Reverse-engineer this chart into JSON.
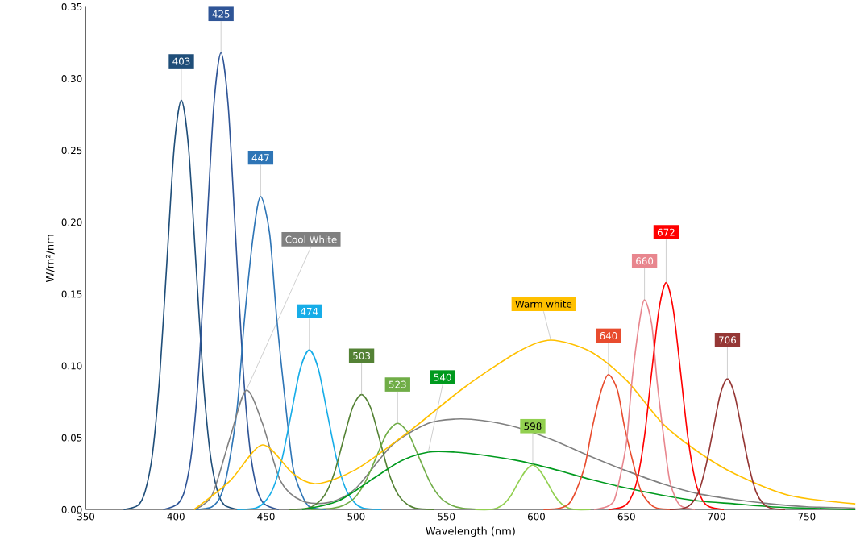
{
  "chart_data": {
    "type": "line",
    "xlabel": "Wavelength (nm)",
    "ylabel": "W/m²/nm",
    "xlim": [
      350,
      777
    ],
    "ylim": [
      0,
      0.35
    ],
    "xticks": [
      350,
      400,
      450,
      500,
      550,
      600,
      650,
      700,
      750
    ],
    "yticks": [
      {
        "value": 0,
        "label": "0.00"
      },
      {
        "value": 0.05,
        "label": "0.05"
      },
      {
        "value": 0.1,
        "label": "0.10"
      },
      {
        "value": 0.15,
        "label": "0.15"
      },
      {
        "value": 0.2,
        "label": "0.20"
      },
      {
        "value": 0.25,
        "label": "0.25"
      },
      {
        "value": 0.3,
        "label": "0.30"
      },
      {
        "value": 0.35,
        "label": "0.35"
      }
    ],
    "grid": false,
    "legend": false,
    "marker": "none",
    "line_style": "solid",
    "series": [
      {
        "name": "403",
        "color": "#1f4e79",
        "x": [
          371,
          379,
          383,
          387,
          391,
          395,
          399,
          403,
          407,
          411,
          415,
          419,
          423,
          427,
          435
        ],
        "values": [
          0,
          0.003,
          0.013,
          0.039,
          0.093,
          0.173,
          0.252,
          0.285,
          0.252,
          0.173,
          0.093,
          0.039,
          0.013,
          0.003,
          0
        ]
      },
      {
        "name": "425",
        "color": "#2f5597",
        "x": [
          393,
          401,
          405,
          409,
          413,
          417,
          421,
          425,
          429,
          433,
          437,
          441,
          445,
          449,
          457
        ],
        "values": [
          0,
          0.004,
          0.014,
          0.043,
          0.103,
          0.193,
          0.281,
          0.318,
          0.281,
          0.193,
          0.103,
          0.043,
          0.014,
          0.004,
          0
        ]
      },
      {
        "name": "447",
        "color": "#2e75b6",
        "x": [
          411,
          420,
          425,
          429,
          434,
          438,
          443,
          447,
          452,
          456,
          461,
          465,
          470,
          474,
          483
        ],
        "values": [
          0,
          0.002,
          0.01,
          0.029,
          0.071,
          0.132,
          0.192,
          0.218,
          0.192,
          0.132,
          0.071,
          0.029,
          0.01,
          0.002,
          0
        ]
      },
      {
        "name": "Cool White",
        "color": "#808080",
        "x": [
          410,
          420,
          430,
          439,
          448,
          458,
          470,
          485,
          500,
          520,
          540,
          555,
          570,
          590,
          610,
          630,
          650,
          670,
          690,
          710,
          730,
          750,
          777
        ],
        "values": [
          0,
          0.01,
          0.05,
          0.083,
          0.06,
          0.02,
          0.006,
          0.005,
          0.015,
          0.045,
          0.06,
          0.063,
          0.062,
          0.057,
          0.048,
          0.037,
          0.027,
          0.018,
          0.011,
          0.007,
          0.004,
          0.002,
          0.001
        ]
      },
      {
        "name": "474",
        "color": "#17ade8",
        "x": [
          434,
          444,
          449,
          454,
          459,
          464,
          469,
          474,
          479,
          484,
          489,
          494,
          499,
          504,
          514
        ],
        "values": [
          0,
          0.001,
          0.005,
          0.015,
          0.036,
          0.067,
          0.098,
          0.111,
          0.098,
          0.067,
          0.036,
          0.015,
          0.005,
          0.001,
          0
        ]
      },
      {
        "name": "503",
        "color": "#548235",
        "x": [
          463,
          473,
          478,
          483,
          488,
          493,
          498,
          503,
          508,
          513,
          518,
          523,
          528,
          533,
          543
        ],
        "values": [
          0,
          0.001,
          0.004,
          0.011,
          0.026,
          0.049,
          0.071,
          0.08,
          0.071,
          0.049,
          0.026,
          0.011,
          0.004,
          0.001,
          0
        ]
      },
      {
        "name": "523",
        "color": "#70ad47",
        "x": [
          475,
          487,
          493,
          499,
          505,
          511,
          517,
          523,
          529,
          535,
          541,
          547,
          553,
          559,
          571
        ],
        "values": [
          0,
          0.001,
          0.003,
          0.008,
          0.019,
          0.036,
          0.053,
          0.06,
          0.053,
          0.036,
          0.019,
          0.008,
          0.003,
          0.001,
          0
        ]
      },
      {
        "name": "540",
        "color": "#009a1e",
        "x": [
          470,
          490,
          510,
          525,
          540,
          555,
          570,
          590,
          610,
          630,
          650,
          670,
          690,
          710,
          730,
          750,
          777
        ],
        "values": [
          0,
          0.006,
          0.022,
          0.034,
          0.04,
          0.04,
          0.038,
          0.034,
          0.028,
          0.021,
          0.015,
          0.01,
          0.006,
          0.004,
          0.002,
          0.001,
          0
        ]
      },
      {
        "name": "598",
        "color": "#92d050",
        "x": [
          566,
          574,
          578,
          582,
          586,
          590,
          594,
          598,
          602,
          606,
          610,
          614,
          618,
          622,
          630
        ],
        "values": [
          0,
          0,
          0.001,
          0.004,
          0.01,
          0.019,
          0.027,
          0.031,
          0.027,
          0.019,
          0.01,
          0.004,
          0.001,
          0,
          0
        ]
      },
      {
        "name": "Warm white",
        "color": "#ffc000",
        "x": [
          410,
          430,
          448,
          465,
          478,
          500,
          530,
          560,
          590,
          608,
          630,
          650,
          670,
          690,
          710,
          740,
          777
        ],
        "values": [
          0,
          0.02,
          0.045,
          0.025,
          0.018,
          0.028,
          0.055,
          0.085,
          0.11,
          0.118,
          0.11,
          0.09,
          0.06,
          0.04,
          0.025,
          0.01,
          0.004
        ]
      },
      {
        "name": "640",
        "color": "#e84c2e",
        "x": [
          604,
          613,
          618,
          622,
          627,
          631,
          636,
          640,
          645,
          649,
          654,
          658,
          663,
          667,
          676
        ],
        "values": [
          0,
          0.001,
          0.004,
          0.013,
          0.031,
          0.057,
          0.083,
          0.094,
          0.083,
          0.057,
          0.031,
          0.013,
          0.004,
          0.001,
          0
        ]
      },
      {
        "name": "660",
        "color": "#e8868e",
        "x": [
          632,
          639,
          643,
          646,
          650,
          653,
          657,
          660,
          664,
          667,
          671,
          674,
          678,
          681,
          688
        ],
        "values": [
          0,
          0.002,
          0.006,
          0.02,
          0.047,
          0.089,
          0.129,
          0.146,
          0.129,
          0.089,
          0.047,
          0.02,
          0.006,
          0.002,
          0
        ]
      },
      {
        "name": "672",
        "color": "#ff0000",
        "x": [
          640,
          648,
          652,
          656,
          660,
          664,
          668,
          672,
          676,
          680,
          684,
          688,
          692,
          696,
          704
        ],
        "values": [
          0,
          0.002,
          0.007,
          0.021,
          0.051,
          0.096,
          0.139,
          0.158,
          0.139,
          0.096,
          0.051,
          0.021,
          0.007,
          0.002,
          0
        ]
      },
      {
        "name": "706",
        "color": "#953735",
        "x": [
          674,
          682,
          686,
          690,
          694,
          698,
          702,
          706,
          710,
          714,
          718,
          722,
          726,
          730,
          738
        ],
        "values": [
          0,
          0.001,
          0.004,
          0.012,
          0.03,
          0.055,
          0.08,
          0.091,
          0.08,
          0.055,
          0.03,
          0.012,
          0.004,
          0.001,
          0
        ]
      }
    ]
  }
}
